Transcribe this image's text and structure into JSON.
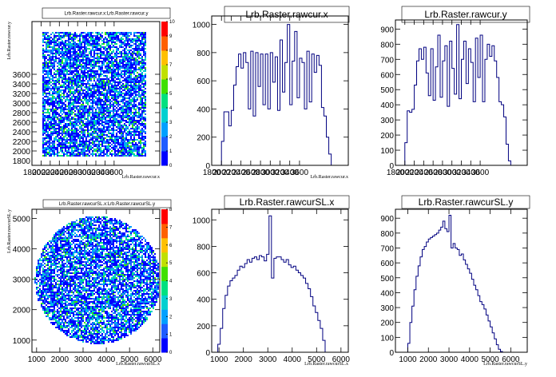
{
  "chart_data": [
    {
      "id": "p1",
      "type": "heatmap",
      "title": "Lrb.Raster.rawcur.x:Lrb.Raster.rawcur.y",
      "xlabel": "Lrb.Raster.rawcur.x",
      "ylabel": "Lrb.Raster.rawcur.y",
      "xlim": [
        1800,
        4600
      ],
      "ylim": [
        1700,
        4700
      ],
      "xticks": [
        1800,
        2000,
        2200,
        2400,
        2600,
        2800,
        3000,
        3200,
        3400,
        3600
      ],
      "xticklabels": [
        "1800",
        "2000",
        "2200",
        "2400",
        "2600",
        "2800",
        "3000",
        "3200",
        "3400",
        "3600"
      ],
      "yticks": [
        2000,
        2200,
        2400,
        2600,
        2800,
        3000,
        3200,
        3400,
        3600
      ],
      "yticklabels": [
        "2000",
        "2200",
        "2400",
        "2600",
        "2800",
        "3000",
        "3200",
        "3400",
        "3600"
      ],
      "yticklabels_extra": [
        "1800"
      ],
      "region": {
        "shape": "rect",
        "x": [
          2000,
          4300
        ],
        "y": [
          1900,
          4500
        ]
      },
      "zlim": [
        0,
        10
      ],
      "colorbar_ticks": [
        "0",
        "1",
        "2",
        "3",
        "4",
        "5",
        "6",
        "7",
        "8",
        "9",
        "10"
      ]
    },
    {
      "id": "p2",
      "type": "bar",
      "title": "Lrb.Raster.rawcur.x",
      "xlabel": "Lrb.Raster.rawcur.x",
      "xlim": [
        1800,
        4600
      ],
      "ylim": [
        0,
        1060
      ],
      "xticks": [
        1800,
        2000,
        2200,
        2400,
        2600,
        2800,
        3000,
        3200,
        3400,
        3600
      ],
      "yticks": [
        0,
        200,
        400,
        600,
        800,
        1000
      ],
      "bin_start": 2000,
      "bin_width": 50,
      "values": [
        170,
        380,
        380,
        280,
        390,
        570,
        700,
        790,
        690,
        800,
        730,
        400,
        810,
        350,
        800,
        560,
        790,
        430,
        790,
        400,
        800,
        590,
        770,
        390,
        890,
        520,
        730,
        1000,
        430,
        740,
        950,
        480,
        760,
        730,
        400,
        810,
        450,
        790,
        660,
        780,
        710,
        410,
        350,
        200,
        80
      ]
    },
    {
      "id": "p3",
      "type": "bar",
      "title": "Lrb.Raster.rawcur.y",
      "xlabel": "",
      "xlim": [
        1800,
        4600
      ],
      "ylim": [
        0,
        960
      ],
      "xticks": [
        1800,
        2000,
        2200,
        2400,
        2600,
        2800,
        3000,
        3200,
        3400,
        3600
      ],
      "yticks": [
        0,
        100,
        200,
        300,
        400,
        500,
        600,
        700,
        800,
        900
      ],
      "bin_start": 2000,
      "bin_width": 50,
      "values": [
        150,
        360,
        350,
        370,
        530,
        690,
        770,
        700,
        780,
        610,
        460,
        770,
        430,
        650,
        860,
        450,
        690,
        790,
        390,
        820,
        640,
        470,
        930,
        440,
        700,
        820,
        540,
        770,
        680,
        420,
        840,
        580,
        860,
        420,
        700,
        800,
        720,
        790,
        690,
        580,
        420,
        400,
        320,
        140,
        30
      ]
    },
    {
      "id": "p4",
      "type": "heatmap",
      "title": "Lrb.Raster.rawcurSL.x:Lrb.Raster.rawcurSL.y",
      "xlabel": "Lrb.Raster.rawcurSL.x",
      "ylabel": "Lrb.Raster.rawcurSL.y",
      "xlim": [
        800,
        6300
      ],
      "ylim": [
        600,
        5300
      ],
      "xticks": [
        1000,
        2000,
        3000,
        4000,
        5000,
        6000
      ],
      "xticklabels": [
        "1000",
        "2000",
        "3000",
        "4000",
        "5000",
        "6000"
      ],
      "yticks": [
        1000,
        2000,
        3000,
        4000,
        5000
      ],
      "yticklabels": [
        "1000",
        "2000",
        "3000",
        "4000",
        "5000"
      ],
      "region": {
        "shape": "circle",
        "cx": 3600,
        "cy": 3000,
        "rx": 2700,
        "ry": 2100
      },
      "zlim": [
        0,
        8
      ],
      "colorbar_ticks": [
        "0",
        "1",
        "2",
        "3",
        "4",
        "5",
        "6",
        "7",
        "8"
      ]
    },
    {
      "id": "p5",
      "type": "bar",
      "title": "Lrb.Raster.rawcurSL.x",
      "xlabel": "Lrb.Raster.rawcurSL.x",
      "xlim": [
        700,
        6300
      ],
      "ylim": [
        0,
        1080
      ],
      "xticks": [
        1000,
        2000,
        3000,
        4000,
        5000,
        6000
      ],
      "yticks": [
        0,
        200,
        400,
        600,
        800,
        1000
      ],
      "bin_start": 950,
      "bin_width": 100,
      "values": [
        60,
        180,
        330,
        430,
        500,
        540,
        560,
        580,
        620,
        650,
        640,
        670,
        700,
        680,
        710,
        720,
        700,
        730,
        720,
        690,
        740,
        1030,
        560,
        710,
        720,
        720,
        700,
        680,
        700,
        660,
        640,
        650,
        620,
        600,
        580,
        560,
        520,
        480,
        420,
        350,
        300,
        240,
        180,
        90
      ]
    },
    {
      "id": "p6",
      "type": "bar",
      "title": "Lrb.Raster.rawcurSL.y",
      "xlabel": "Lrb.Raster.rawcurSL.y",
      "xlim": [
        400,
        6800
      ],
      "ylim": [
        0,
        960
      ],
      "xticks": [
        1000,
        2000,
        3000,
        4000,
        5000,
        6000
      ],
      "yticks": [
        0,
        100,
        200,
        300,
        400,
        500,
        600,
        700,
        800,
        900
      ],
      "bin_start": 1000,
      "bin_width": 100,
      "values": [
        60,
        200,
        310,
        420,
        510,
        580,
        640,
        690,
        710,
        740,
        760,
        770,
        780,
        790,
        800,
        820,
        840,
        880,
        830,
        810,
        920,
        700,
        730,
        700,
        690,
        650,
        660,
        620,
        590,
        560,
        530,
        490,
        450,
        420,
        380,
        340,
        320,
        290,
        250,
        210,
        170,
        130,
        90,
        50,
        20,
        5
      ]
    }
  ]
}
